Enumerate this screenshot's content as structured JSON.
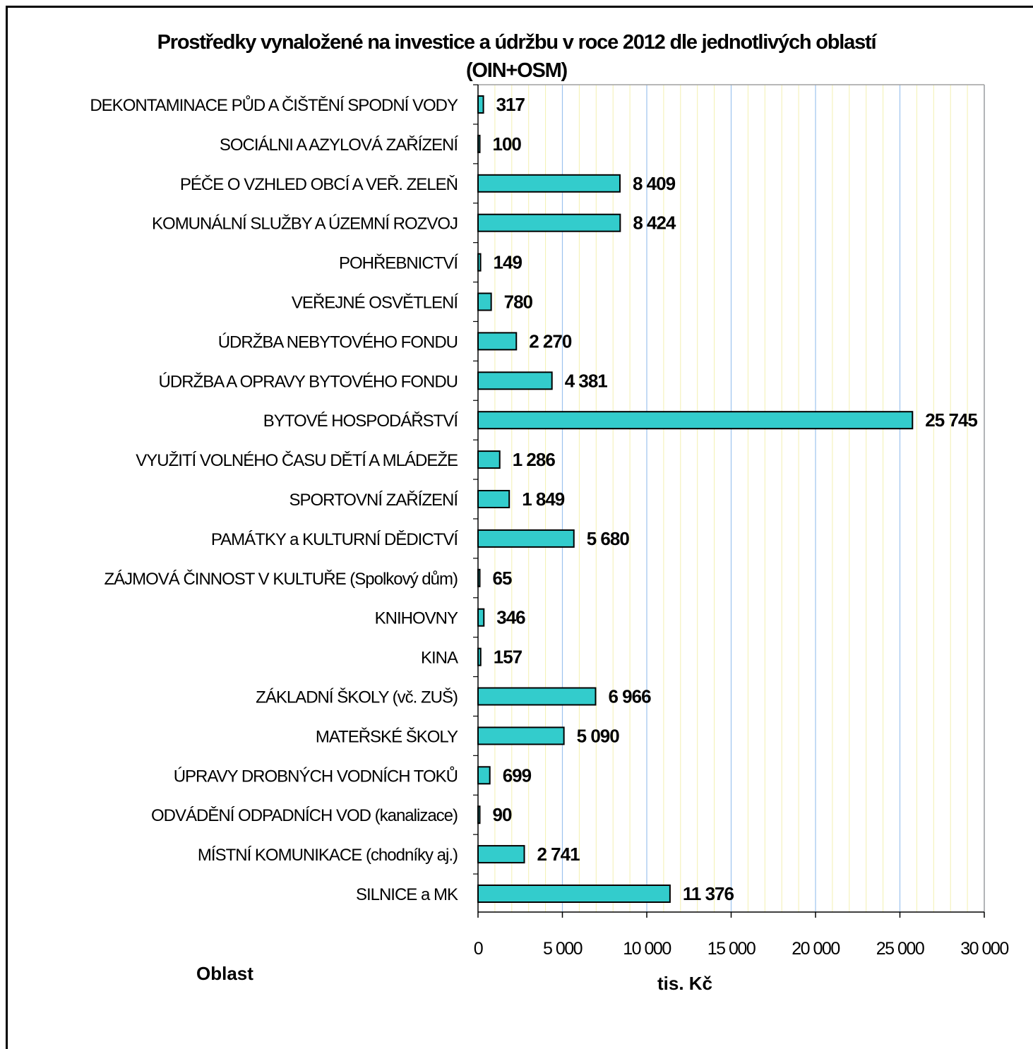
{
  "chart_data": {
    "type": "bar",
    "orientation": "horizontal",
    "title": "Prostředky vynaložené na investice a údržbu v roce 2012 dle jednotlivých oblastí",
    "subtitle": "(OIN+OSM)",
    "ylabel": "Oblast",
    "xlabel": "tis. Kč",
    "xlim": [
      0,
      30000
    ],
    "xticks": [
      0,
      5000,
      10000,
      15000,
      20000,
      25000,
      30000
    ],
    "xtick_labels": [
      "0",
      "5 000",
      "10 000",
      "15 000",
      "20 000",
      "25 000",
      "30 000"
    ],
    "grid": true,
    "bar_color": "#33CCCC",
    "categories": [
      "DEKONTAMINACE PŮD A ČIŠTĚNÍ SPODNÍ VODY",
      "SOCIÁLNI A AZYLOVÁ ZAŘÍZENÍ",
      "PÉČE O VZHLED OBCÍ A VEŘ. ZELEŇ",
      "KOMUNÁLNÍ SLUŽBY A ÚZEMNÍ ROZVOJ",
      "POHŘEBNICTVÍ",
      "VEŘEJNÉ OSVĚTLENÍ",
      "ÚDRŽBA NEBYTOVÉHO FONDU",
      "ÚDRŽBA A OPRAVY BYTOVÉHO FONDU",
      "BYTOVÉ HOSPODÁŘSTVÍ",
      "VYUŽITÍ VOLNÉHO ČASU DĚTÍ A MLÁDEŽE",
      "SPORTOVNÍ ZAŘÍZENÍ",
      "PAMÁTKY a KULTURNÍ DĚDICTVÍ",
      "ZÁJMOVÁ ČINNOST V KULTUŘE (Spolkový dům)",
      "KNIHOVNY",
      "KINA",
      "ZÁKLADNÍ ŠKOLY (vč. ZUŠ)",
      "MATEŘSKÉ ŠKOLY",
      "ÚPRAVY DROBNÝCH VODNÍCH TOKŮ",
      "ODVÁDĚNÍ ODPADNÍCH VOD (kanalizace)",
      "MÍSTNÍ KOMUNIKACE (chodníky aj.)",
      "SILNICE a MK"
    ],
    "values": [
      317,
      100,
      8409,
      8424,
      149,
      780,
      2270,
      4381,
      25745,
      1286,
      1849,
      5680,
      65,
      346,
      157,
      6966,
      5090,
      699,
      90,
      2741,
      11376
    ],
    "value_labels": [
      "317",
      "100",
      "8 409",
      "8 424",
      "149",
      "780",
      "2 270",
      "4 381",
      "25 745",
      "1 286",
      "1 849",
      "5 680",
      "65",
      "346",
      "157",
      "6 966",
      "5 090",
      "699",
      "90",
      "2 741",
      "11 376"
    ]
  }
}
